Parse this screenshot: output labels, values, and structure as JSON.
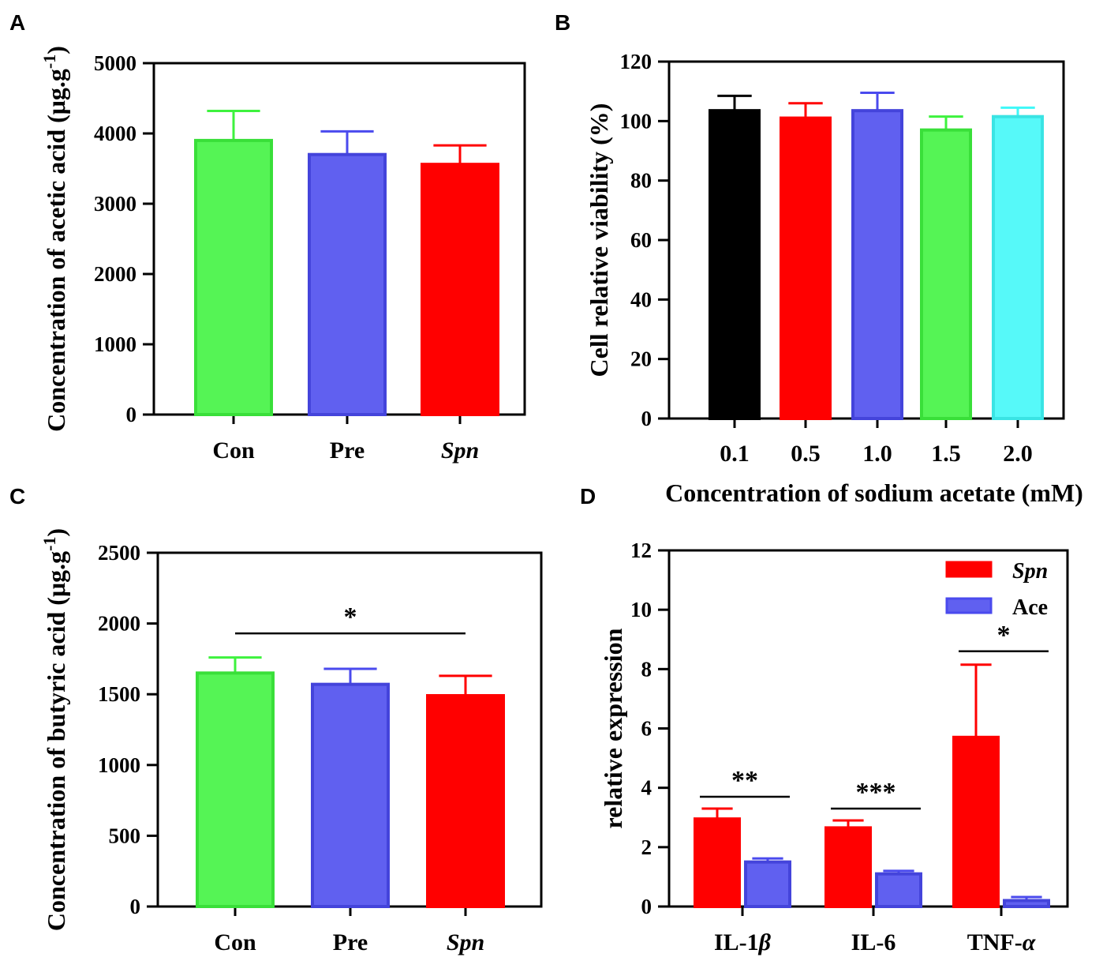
{
  "chart_data": [
    {
      "id": "A",
      "panel_label": "A",
      "type": "bar",
      "ylabel": "Concentration of acetic acid (μg.g",
      "ylabel_sup": "-1",
      "ylabel_close": ")",
      "xlabel": "",
      "ylim": [
        0,
        5000
      ],
      "yticks": [
        0,
        1000,
        2000,
        3000,
        4000,
        5000
      ],
      "categories": [
        {
          "label": "Con",
          "italic": false
        },
        {
          "label": "Pre",
          "italic": false
        },
        {
          "label": "Spn",
          "italic": true
        }
      ],
      "values": [
        3900,
        3700,
        3560
      ],
      "errors": [
        420,
        330,
        270
      ],
      "colors": [
        "#3ef23e",
        "#4a4aee",
        "#ff0000"
      ]
    },
    {
      "id": "B",
      "panel_label": "B",
      "type": "bar",
      "ylabel": "Cell relative viability (%)",
      "xlabel": "Concentration of sodium acetate (mM)",
      "ylim": [
        0,
        120
      ],
      "yticks": [
        0,
        20,
        40,
        60,
        80,
        100,
        120
      ],
      "categories": [
        {
          "label": "0.1",
          "italic": false
        },
        {
          "label": "0.5",
          "italic": false
        },
        {
          "label": "1.0",
          "italic": false
        },
        {
          "label": "1.5",
          "italic": false
        },
        {
          "label": "2.0",
          "italic": false
        }
      ],
      "values": [
        103.5,
        101,
        103.5,
        97,
        101.5
      ],
      "errors": [
        5,
        5,
        6,
        4.5,
        3
      ],
      "colors": [
        "#000000",
        "#ff0000",
        "#4a4aee",
        "#3ef23e",
        "#3ff8f8"
      ]
    },
    {
      "id": "C",
      "panel_label": "C",
      "type": "bar",
      "ylabel": "Concentration of butyric acid (μg.g",
      "ylabel_sup": "-1",
      "ylabel_close": ")",
      "xlabel": "",
      "ylim": [
        0,
        2500
      ],
      "yticks": [
        0,
        500,
        1000,
        1500,
        2000,
        2500
      ],
      "categories": [
        {
          "label": "Con",
          "italic": false
        },
        {
          "label": "Pre",
          "italic": false
        },
        {
          "label": "Spn",
          "italic": true
        }
      ],
      "values": [
        1650,
        1570,
        1490
      ],
      "errors": [
        110,
        110,
        140
      ],
      "colors": [
        "#3ef23e",
        "#4a4aee",
        "#ff0000"
      ],
      "annotations": [
        {
          "text": "*",
          "from": 0,
          "to": 2,
          "y": 1930
        }
      ]
    },
    {
      "id": "D",
      "panel_label": "D",
      "type": "bar",
      "grouped": true,
      "ylabel": "relative expression",
      "xlabel": "",
      "ylim": [
        0,
        12
      ],
      "yticks": [
        0,
        2,
        4,
        6,
        8,
        10,
        12
      ],
      "categories": [
        {
          "label": "IL-1",
          "suffix": "β",
          "italic": false
        },
        {
          "label": "IL-6",
          "suffix": "",
          "italic": false
        },
        {
          "label": "TNF-",
          "suffix": "α",
          "italic": false
        }
      ],
      "series": [
        {
          "name": "Spn",
          "italic": true,
          "color": "#ff0000",
          "values": [
            2.95,
            2.65,
            5.7
          ],
          "errors": [
            0.35,
            0.25,
            2.45
          ]
        },
        {
          "name": "Ace",
          "italic": false,
          "color": "#4a4aee",
          "values": [
            1.5,
            1.1,
            0.2
          ],
          "errors": [
            0.12,
            0.1,
            0.12
          ]
        }
      ],
      "annotations": [
        {
          "text": "**",
          "group": 0,
          "y": 3.7
        },
        {
          "text": "***",
          "group": 1,
          "y": 3.3
        },
        {
          "text": "*",
          "group": 2,
          "y": 8.6
        }
      ]
    }
  ]
}
